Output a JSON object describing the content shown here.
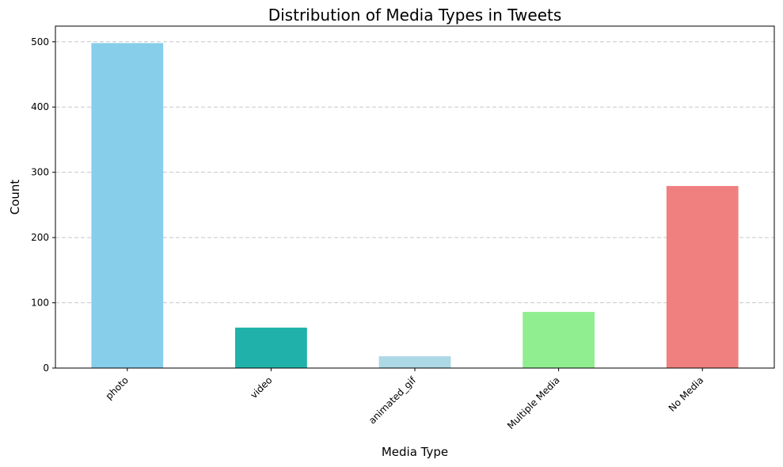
{
  "chart_data": {
    "type": "bar",
    "title": "Distribution of Media Types in Tweets",
    "xlabel": "Media Type",
    "ylabel": "Count",
    "categories": [
      "photo",
      "video",
      "animated_gif",
      "Multiple Media",
      "No Media"
    ],
    "values": [
      498,
      62,
      18,
      86,
      279
    ],
    "colors": [
      "#87ceeb",
      "#20b2aa",
      "#add8e6",
      "#90ee90",
      "#f08080"
    ],
    "ylim": [
      0,
      524
    ],
    "yticks": [
      0,
      100,
      200,
      300,
      400,
      500
    ],
    "grid": "y-dashed",
    "legend": "none"
  }
}
